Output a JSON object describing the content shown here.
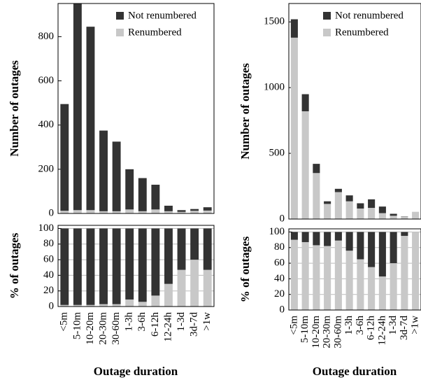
{
  "chart_data": [
    {
      "type": "stacked-bar",
      "y_label": "Number of outages",
      "legend": "upper right",
      "ylim": [
        0,
        950
      ],
      "yticks": [
        0,
        200,
        400,
        600,
        800
      ],
      "series": [
        {
          "name": "Not renumbered",
          "color": "#333333",
          "values": [
            483,
            935,
            830,
            365,
            315,
            182,
            150,
            112,
            25,
            8,
            8,
            15
          ]
        },
        {
          "name": "Renumbered",
          "color": "#c8c8c8",
          "values": [
            12,
            15,
            15,
            10,
            10,
            18,
            10,
            18,
            10,
            7,
            12,
            13
          ]
        }
      ]
    },
    {
      "type": "stacked-bar",
      "y_label": "% of outages",
      "x_label": "Outage duration",
      "grid": true,
      "categories": [
        "<5m",
        "5-10m",
        "10-20m",
        "20-30m",
        "30-60m",
        "1-3h",
        "3-6h",
        "6-12h",
        "12-24h",
        "1-3d",
        "3d-7d",
        ">1w"
      ],
      "ylim": [
        0,
        104
      ],
      "yticks": [
        0,
        20,
        40,
        60,
        80,
        100
      ],
      "series": [
        {
          "color": "#333333",
          "values": [
            98,
            98,
            98,
            97,
            97,
            91,
            94,
            86,
            71,
            53,
            40,
            53
          ]
        },
        {
          "color": "#c8c8c8",
          "values": [
            2,
            2,
            2,
            3,
            3,
            9,
            6,
            14,
            29,
            47,
            60,
            47
          ]
        }
      ]
    },
    {
      "type": "stacked-bar",
      "y_label": "Number of outages",
      "legend": "upper right",
      "ylim": [
        0,
        1640
      ],
      "yticks": [
        0,
        500,
        1000,
        1500
      ],
      "series": [
        {
          "name": "Not renumbered",
          "color": "#333333",
          "values": [
            140,
            130,
            70,
            20,
            25,
            45,
            40,
            65,
            50,
            15,
            2,
            0
          ]
        },
        {
          "name": "Renumbered",
          "color": "#c8c8c8",
          "values": [
            1380,
            820,
            350,
            115,
            205,
            135,
            80,
            85,
            45,
            25,
            18,
            55
          ]
        }
      ]
    },
    {
      "type": "stacked-bar",
      "y_label": "% of outages",
      "x_label": "Outage duration",
      "grid": true,
      "categories": [
        "<5m",
        "5-10m",
        "10-20m",
        "20-30m",
        "30-60m",
        "1-3h",
        "3-6h",
        "6-12h",
        "12-24h",
        "1-3d",
        "3d-7d",
        ">1w"
      ],
      "ylim": [
        0,
        104
      ],
      "yticks": [
        0,
        20,
        40,
        60,
        80,
        100
      ],
      "series": [
        {
          "color": "#333333",
          "values": [
            10,
            13,
            17,
            18,
            11,
            24,
            35,
            45,
            57,
            40,
            5,
            0
          ]
        },
        {
          "color": "#c8c8c8",
          "values": [
            90,
            87,
            83,
            82,
            89,
            76,
            65,
            55,
            43,
            60,
            95,
            100
          ]
        }
      ]
    }
  ]
}
